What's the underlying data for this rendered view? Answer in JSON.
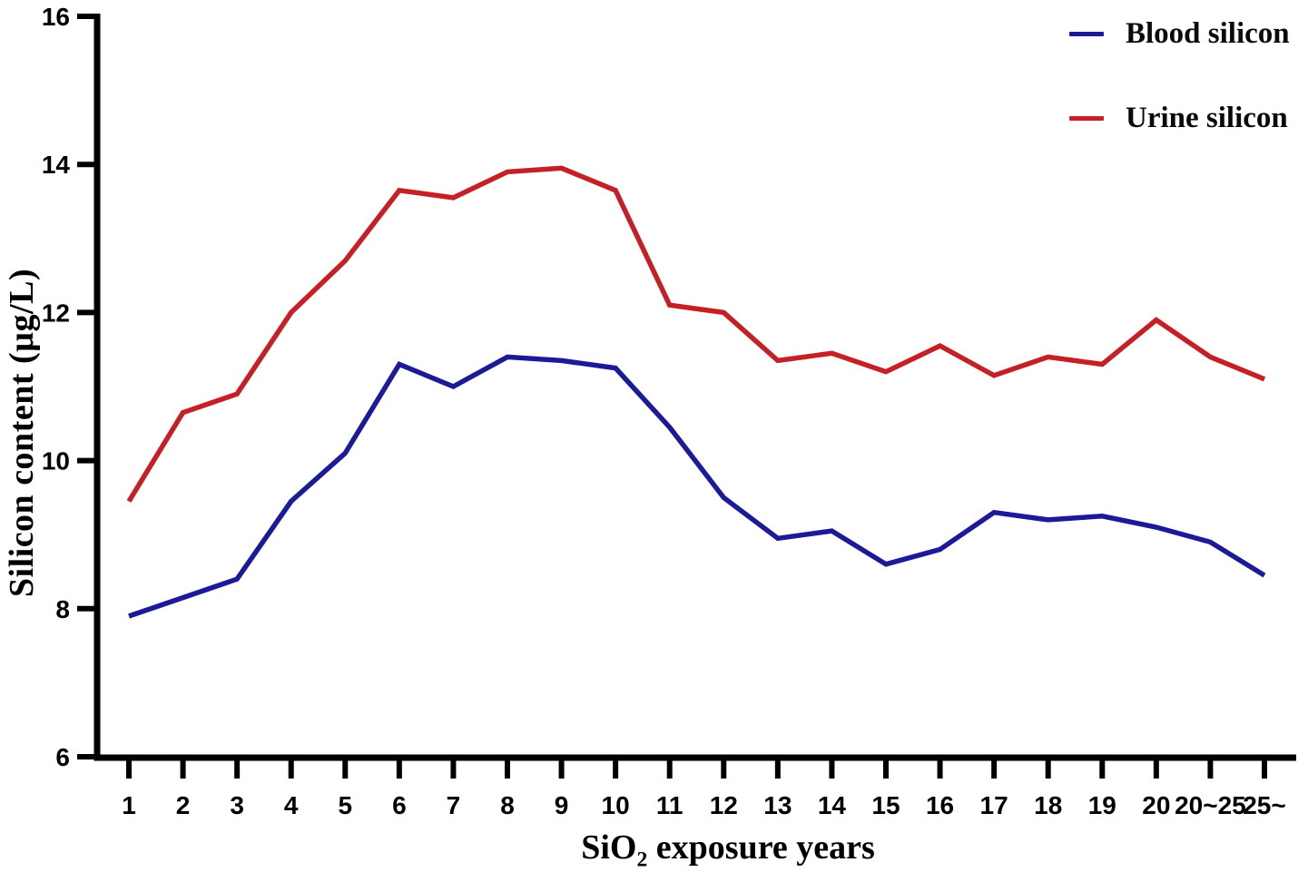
{
  "chart_data": {
    "type": "line",
    "title": "",
    "xlabel": {
      "pre": "SiO",
      "sub": "2",
      "post": " exposure years"
    },
    "ylabel": "Silicon content (µg/L)",
    "ylim": [
      6,
      16
    ],
    "yticks": [
      6,
      8,
      10,
      12,
      14,
      16
    ],
    "grid": false,
    "legend_position": "top-right",
    "categories": [
      "1",
      "2",
      "3",
      "4",
      "5",
      "6",
      "7",
      "8",
      "9",
      "10",
      "11",
      "12",
      "13",
      "14",
      "15",
      "16",
      "17",
      "18",
      "19",
      "20",
      "20~25",
      "25~"
    ],
    "series": [
      {
        "name": "Blood silicon",
        "color": "#1b1b97",
        "values": [
          7.9,
          8.15,
          8.4,
          9.45,
          10.1,
          11.3,
          11.0,
          11.4,
          11.35,
          11.25,
          10.45,
          9.5,
          8.95,
          9.05,
          8.6,
          8.8,
          9.3,
          9.2,
          9.25,
          9.1,
          8.9,
          8.45
        ]
      },
      {
        "name": "Urine silicon",
        "color": "#c52026",
        "values": [
          9.45,
          10.65,
          10.9,
          12.0,
          12.7,
          13.65,
          13.55,
          13.9,
          13.95,
          13.65,
          12.1,
          12.0,
          11.35,
          11.45,
          11.2,
          11.55,
          11.15,
          11.4,
          11.3,
          11.9,
          11.4,
          11.1
        ]
      }
    ],
    "axis_color": "#000000",
    "background_color": "#ffffff"
  }
}
